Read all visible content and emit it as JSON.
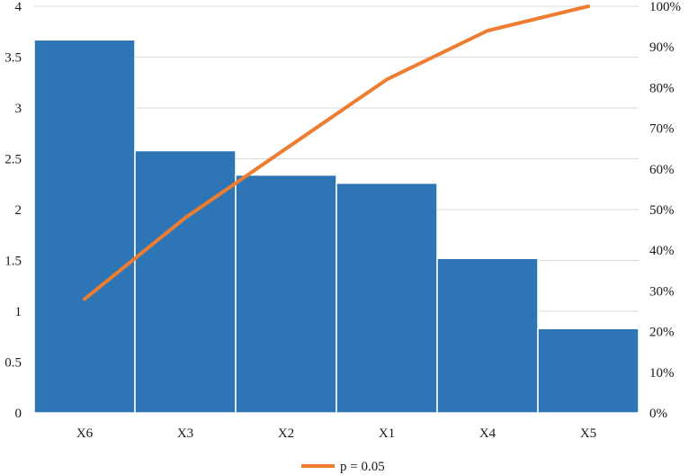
{
  "chart_data": {
    "type": "bar",
    "categories": [
      "X6",
      "X3",
      "X2",
      "X1",
      "X4",
      "X5"
    ],
    "series": [
      {
        "type": "bar",
        "axis": "left",
        "values": [
          3.67,
          2.58,
          2.34,
          2.26,
          1.52,
          0.83
        ],
        "color": "#2E75B6"
      },
      {
        "type": "line",
        "axis": "right",
        "name": "p = 0.05",
        "values": [
          28,
          48,
          65,
          82,
          94,
          100
        ],
        "color": "#ED7D31"
      }
    ],
    "y_left": {
      "ylim": [
        0,
        4
      ],
      "ticks": [
        "0",
        "0.5",
        "1",
        "1.5",
        "2",
        "2.5",
        "3",
        "3.5",
        "4"
      ]
    },
    "y_right": {
      "ylim": [
        0,
        100
      ],
      "ticks": [
        "0%",
        "10%",
        "20%",
        "30%",
        "40%",
        "50%",
        "60%",
        "70%",
        "80%",
        "90%",
        "100%"
      ]
    },
    "grid": true,
    "legend": {
      "position": "bottom",
      "entries": [
        "p = 0.05"
      ]
    }
  }
}
